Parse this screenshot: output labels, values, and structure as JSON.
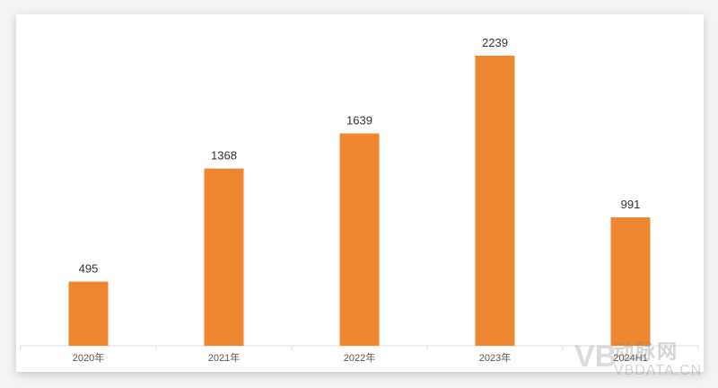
{
  "chart_data": {
    "type": "bar",
    "categories": [
      "2020年",
      "2021年",
      "2022年",
      "2023年",
      "2024H1"
    ],
    "values": [
      495,
      1368,
      1639,
      2239,
      991
    ],
    "title": "",
    "xlabel": "",
    "ylabel": "",
    "ylim": [
      0,
      2239
    ],
    "grid": false,
    "data_labels": true,
    "bar_color": "#ee8632"
  },
  "watermark": {
    "logo_cn": "动脉网",
    "logo_en": "VBDATA.CN"
  }
}
